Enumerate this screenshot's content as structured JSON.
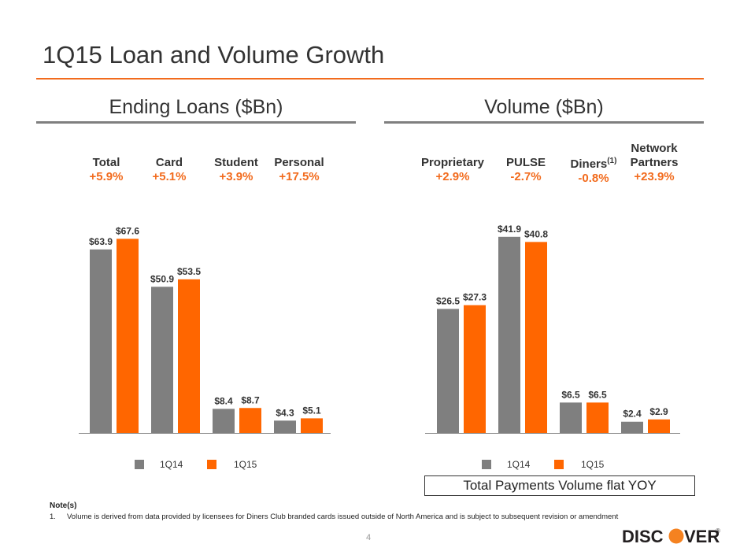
{
  "title": "1Q15 Loan and Volume Growth",
  "colors": {
    "series_1q14": "#7f7f7f",
    "series_1q15": "#ff6600",
    "accent": "#f26b1d"
  },
  "loans_panel": {
    "heading": "Ending Loans ($Bn)",
    "categories": [
      {
        "name": "Total",
        "growth": "+5.9%"
      },
      {
        "name": "Card",
        "growth": "+5.1%"
      },
      {
        "name": "Student",
        "growth": "+3.9%"
      },
      {
        "name": "Personal",
        "growth": "+17.5%"
      }
    ]
  },
  "volume_panel": {
    "heading": "Volume ($Bn)",
    "categories": [
      {
        "name": "Proprietary",
        "growth": "+2.9%"
      },
      {
        "name": "PULSE",
        "growth": "-2.7%"
      },
      {
        "name": "Diners",
        "note": "(1)",
        "growth": "-0.8%"
      },
      {
        "name_line1": "Network",
        "name_line2": "Partners",
        "growth": "+23.9%"
      }
    ],
    "callout": "Total Payments Volume flat YOY"
  },
  "legend": {
    "s1": "1Q14",
    "s2": "1Q15"
  },
  "chart_data": [
    {
      "type": "bar",
      "title": "Ending Loans ($Bn)",
      "categories": [
        "Total",
        "Card",
        "Student",
        "Personal"
      ],
      "series": [
        {
          "name": "1Q14",
          "values": [
            63.9,
            50.9,
            8.4,
            4.3
          ],
          "labels": [
            "$63.9",
            "$50.9",
            "$8.4",
            "$4.3"
          ]
        },
        {
          "name": "1Q15",
          "values": [
            67.6,
            53.5,
            8.7,
            5.1
          ],
          "labels": [
            "$67.6",
            "$53.5",
            "$8.7",
            "$5.1"
          ]
        }
      ],
      "ylim": [
        0,
        74
      ],
      "legend": "bottom"
    },
    {
      "type": "bar",
      "title": "Volume ($Bn)",
      "categories": [
        "Proprietary",
        "PULSE",
        "Diners",
        "Network Partners"
      ],
      "series": [
        {
          "name": "1Q14",
          "values": [
            26.5,
            41.9,
            6.5,
            2.4
          ],
          "labels": [
            "$26.5",
            "$41.9",
            "$6.5",
            "$2.4"
          ]
        },
        {
          "name": "1Q15",
          "values": [
            27.3,
            40.8,
            6.5,
            2.9
          ],
          "labels": [
            "$27.3",
            "$40.8",
            "$6.5",
            "$2.9"
          ]
        }
      ],
      "ylim": [
        0,
        45.4
      ],
      "legend": "bottom"
    }
  ],
  "notes": {
    "heading": "Note(s)",
    "items": [
      {
        "num": "1.",
        "text": "Volume is derived from data provided by licensees for Diners Club branded cards issued outside of North America and is subject to subsequent revision or amendment"
      }
    ]
  },
  "page_number": "4",
  "logo": {
    "left": "DISC",
    "right": "VER",
    "mark": "®"
  }
}
